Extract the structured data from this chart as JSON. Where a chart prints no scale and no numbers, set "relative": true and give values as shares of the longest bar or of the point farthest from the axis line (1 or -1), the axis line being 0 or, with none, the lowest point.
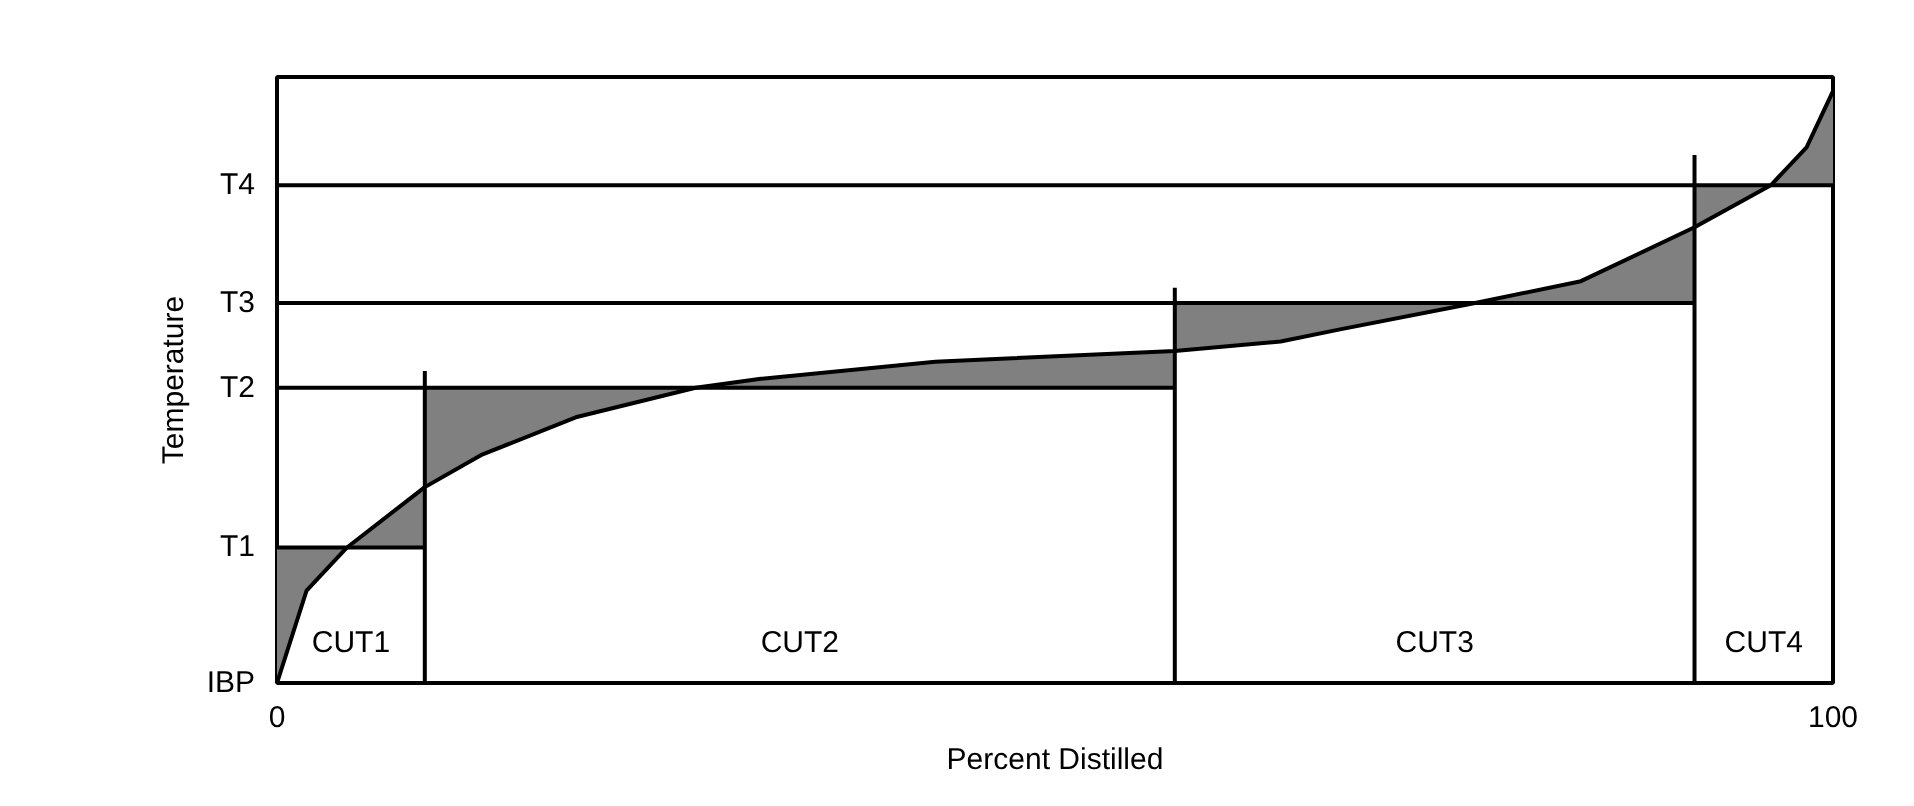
{
  "chart_data": {
    "type": "line",
    "xlabel": "Percent Distilled",
    "ylabel": "Temperature",
    "relative": true,
    "xlim": [
      0,
      100
    ],
    "xticks": [
      0,
      100
    ],
    "marker": "none",
    "line_style": "solid",
    "series": [
      {
        "name": "IBP",
        "color": "#000000",
        "x": [
          0,
          1.9,
          4.5,
          9.5,
          9.5,
          13.1,
          19.2,
          26.9,
          31.1,
          42.3,
          57.7,
          57.7,
          64.5,
          68.4,
          77.0,
          83.8,
          91.1,
          91.1,
          96.0,
          98.3,
          100
        ],
        "values": [
          0,
          0.156,
          0.229,
          0.331,
          0.331,
          0.385,
          0.449,
          0.499,
          0.514,
          0.543,
          0.561,
          0.561,
          0.577,
          0.598,
          0.642,
          0.679,
          0.77,
          0.77,
          0.841,
          0.905,
          1
        ],
        "lower": [
          0,
          0.156,
          0.229,
          0.229,
          0.331,
          0.385,
          0.449,
          0.499,
          0.499,
          0.499,
          0.499,
          0.561,
          0.577,
          0.598,
          0.642,
          0.642,
          0.642,
          0.77,
          0.841,
          0.841,
          0.841
        ],
        "upper": [
          0.229,
          0.229,
          0.229,
          0.331,
          0.499,
          0.499,
          0.499,
          0.499,
          0.514,
          0.543,
          0.561,
          0.642,
          0.642,
          0.642,
          0.642,
          0.679,
          0.77,
          0.841,
          0.841,
          0.905,
          1
        ]
      },
      {
        "name": "T1",
        "color": "#000000",
        "x": [
          0,
          9.5
        ],
        "values": [
          0.229,
          0.229
        ]
      },
      {
        "name": "T2",
        "color": "#000000",
        "x": [
          0,
          57.7
        ],
        "values": [
          0.499,
          0.499
        ]
      },
      {
        "name": "T3",
        "color": "#000000",
        "x": [
          0,
          91.1
        ],
        "values": [
          0.642,
          0.642
        ]
      },
      {
        "name": "T4",
        "color": "#000000",
        "x": [
          0,
          100
        ],
        "values": [
          0.841,
          0.841
        ]
      },
      {
        "color": "#000000",
        "x": [
          9.5,
          9.5
        ],
        "values": [
          0,
          0.527
        ]
      },
      {
        "color": "#000000",
        "x": [
          57.7,
          57.7
        ],
        "values": [
          0,
          0.668
        ]
      },
      {
        "color": "#000000",
        "x": [
          91.1,
          91.1
        ],
        "values": [
          0,
          0.892
        ]
      }
    ],
    "annotations": [
      "CUT1",
      "CUT2",
      "CUT3",
      "CUT4"
    ]
  }
}
